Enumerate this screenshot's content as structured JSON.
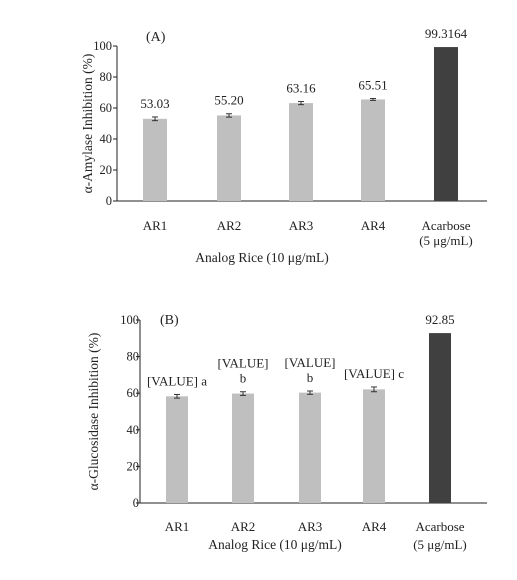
{
  "chart_data": [
    {
      "type": "bar",
      "panel_label": "(A)",
      "categories": [
        "AR1",
        "AR2",
        "AR3",
        "AR4",
        "Acarbose"
      ],
      "category_sublabels": [
        "",
        "",
        "",
        "",
        "(5 μg/mL)"
      ],
      "values": [
        53.03,
        55.2,
        63.16,
        65.51,
        99.3164
      ],
      "errors": [
        1.2,
        1.1,
        1.0,
        0.6,
        0
      ],
      "value_labels": [
        "53.03",
        "55.20",
        "63.16",
        "65.51",
        "99.3164"
      ],
      "bar_colors": [
        "#bfbfbf",
        "#bfbfbf",
        "#bfbfbf",
        "#bfbfbf",
        "#404040"
      ],
      "xlabel": "Analog Rice (10 μg/mL)",
      "ylabel": "α-Amylase Inhibition (%)",
      "ylim": [
        0,
        100
      ],
      "yticks": [
        0,
        20,
        40,
        60,
        80,
        100
      ],
      "grid": false
    },
    {
      "type": "bar",
      "panel_label": "(B)",
      "categories": [
        "AR1",
        "AR2",
        "AR3",
        "AR4",
        "Acarbose"
      ],
      "category_sublabels": [
        "",
        "",
        "",
        "",
        "(5 μg/mL)"
      ],
      "values": [
        58.3,
        59.8,
        60.3,
        62.1,
        92.85
      ],
      "errors": [
        1.0,
        1.0,
        0.9,
        1.3,
        0
      ],
      "value_labels": [
        "[VALUE] a",
        "[VALUE]\nb",
        "[VALUE]\nb",
        "[VALUE] c",
        "92.85"
      ],
      "bar_colors": [
        "#bfbfbf",
        "#bfbfbf",
        "#bfbfbf",
        "#bfbfbf",
        "#404040"
      ],
      "xlabel": "Analog Rice (10 μg/mL)",
      "ylabel": "α-Glucosidase Inhibition (%)",
      "ylim": [
        0,
        100
      ],
      "yticks": [
        0,
        20,
        40,
        60,
        80,
        100
      ],
      "grid": false
    }
  ]
}
